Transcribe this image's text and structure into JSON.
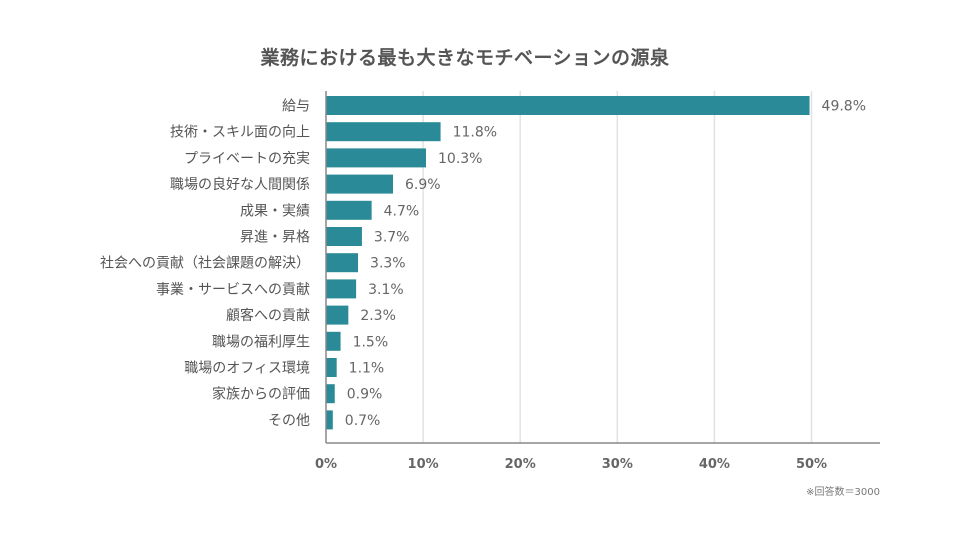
{
  "chart_data": {
    "type": "bar",
    "orientation": "horizontal",
    "title": "業務における最も大きなモチベーションの源泉",
    "categories": [
      "給与",
      "技術・スキル面の向上",
      "プライベートの充実",
      "職場の良好な人間関係",
      "成果・実績",
      "昇進・昇格",
      "社会への貢献（社会課題の解決）",
      "事業・サービスへの貢献",
      "顧客への貢献",
      "職場の福利厚生",
      "職場のオフィス環境",
      "家族からの評価",
      "その他"
    ],
    "values": [
      49.8,
      11.8,
      10.3,
      6.9,
      4.7,
      3.7,
      3.3,
      3.1,
      2.3,
      1.5,
      1.1,
      0.9,
      0.7
    ],
    "value_labels": [
      "49.8%",
      "11.8%",
      "10.3%",
      "6.9%",
      "4.7%",
      "3.7%",
      "3.3%",
      "3.1%",
      "2.3%",
      "1.5%",
      "1.1%",
      "0.9%",
      "0.7%"
    ],
    "xticks": [
      0,
      10,
      20,
      30,
      40,
      50
    ],
    "xtick_labels": [
      "0%",
      "10%",
      "20%",
      "30%",
      "40%",
      "50%"
    ],
    "xlim": [
      0,
      57
    ],
    "grid": "vertical",
    "bar_color": "#2a8a97",
    "grid_color": "#e2e2e2",
    "axis_color": "#888888",
    "footnote": "※回答数＝3000"
  }
}
